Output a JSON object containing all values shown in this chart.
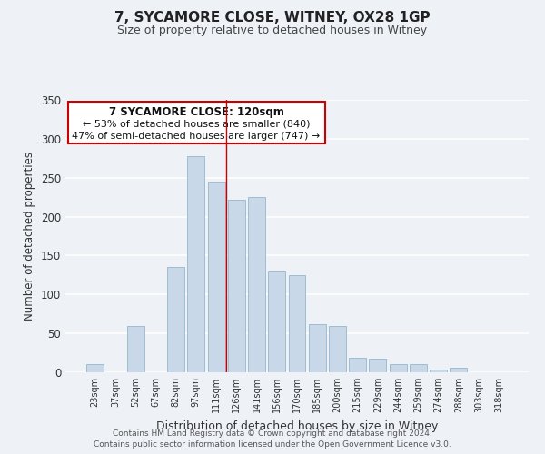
{
  "title": "7, SYCAMORE CLOSE, WITNEY, OX28 1GP",
  "subtitle": "Size of property relative to detached houses in Witney",
  "xlabel": "Distribution of detached houses by size in Witney",
  "ylabel": "Number of detached properties",
  "bar_color": "#c8d8e8",
  "bar_edge_color": "#a0bcd0",
  "categories": [
    "23sqm",
    "37sqm",
    "52sqm",
    "67sqm",
    "82sqm",
    "97sqm",
    "111sqm",
    "126sqm",
    "141sqm",
    "156sqm",
    "170sqm",
    "185sqm",
    "200sqm",
    "215sqm",
    "229sqm",
    "244sqm",
    "259sqm",
    "274sqm",
    "288sqm",
    "303sqm",
    "318sqm"
  ],
  "values": [
    10,
    0,
    60,
    0,
    135,
    278,
    245,
    222,
    225,
    130,
    125,
    62,
    60,
    19,
    17,
    10,
    10,
    4,
    6,
    0,
    0
  ],
  "ylim": [
    0,
    350
  ],
  "yticks": [
    0,
    50,
    100,
    150,
    200,
    250,
    300,
    350
  ],
  "annotation_title": "7 SYCAMORE CLOSE: 120sqm",
  "annotation_line1": "← 53% of detached houses are smaller (840)",
  "annotation_line2": "47% of semi-detached houses are larger (747) →",
  "annotation_box_color": "#ffffff",
  "annotation_box_edge": "#cc0000",
  "property_bar_index": 7,
  "vline_color": "#cc0000",
  "footer_line1": "Contains HM Land Registry data © Crown copyright and database right 2024.",
  "footer_line2": "Contains public sector information licensed under the Open Government Licence v3.0.",
  "background_color": "#eef2f7"
}
